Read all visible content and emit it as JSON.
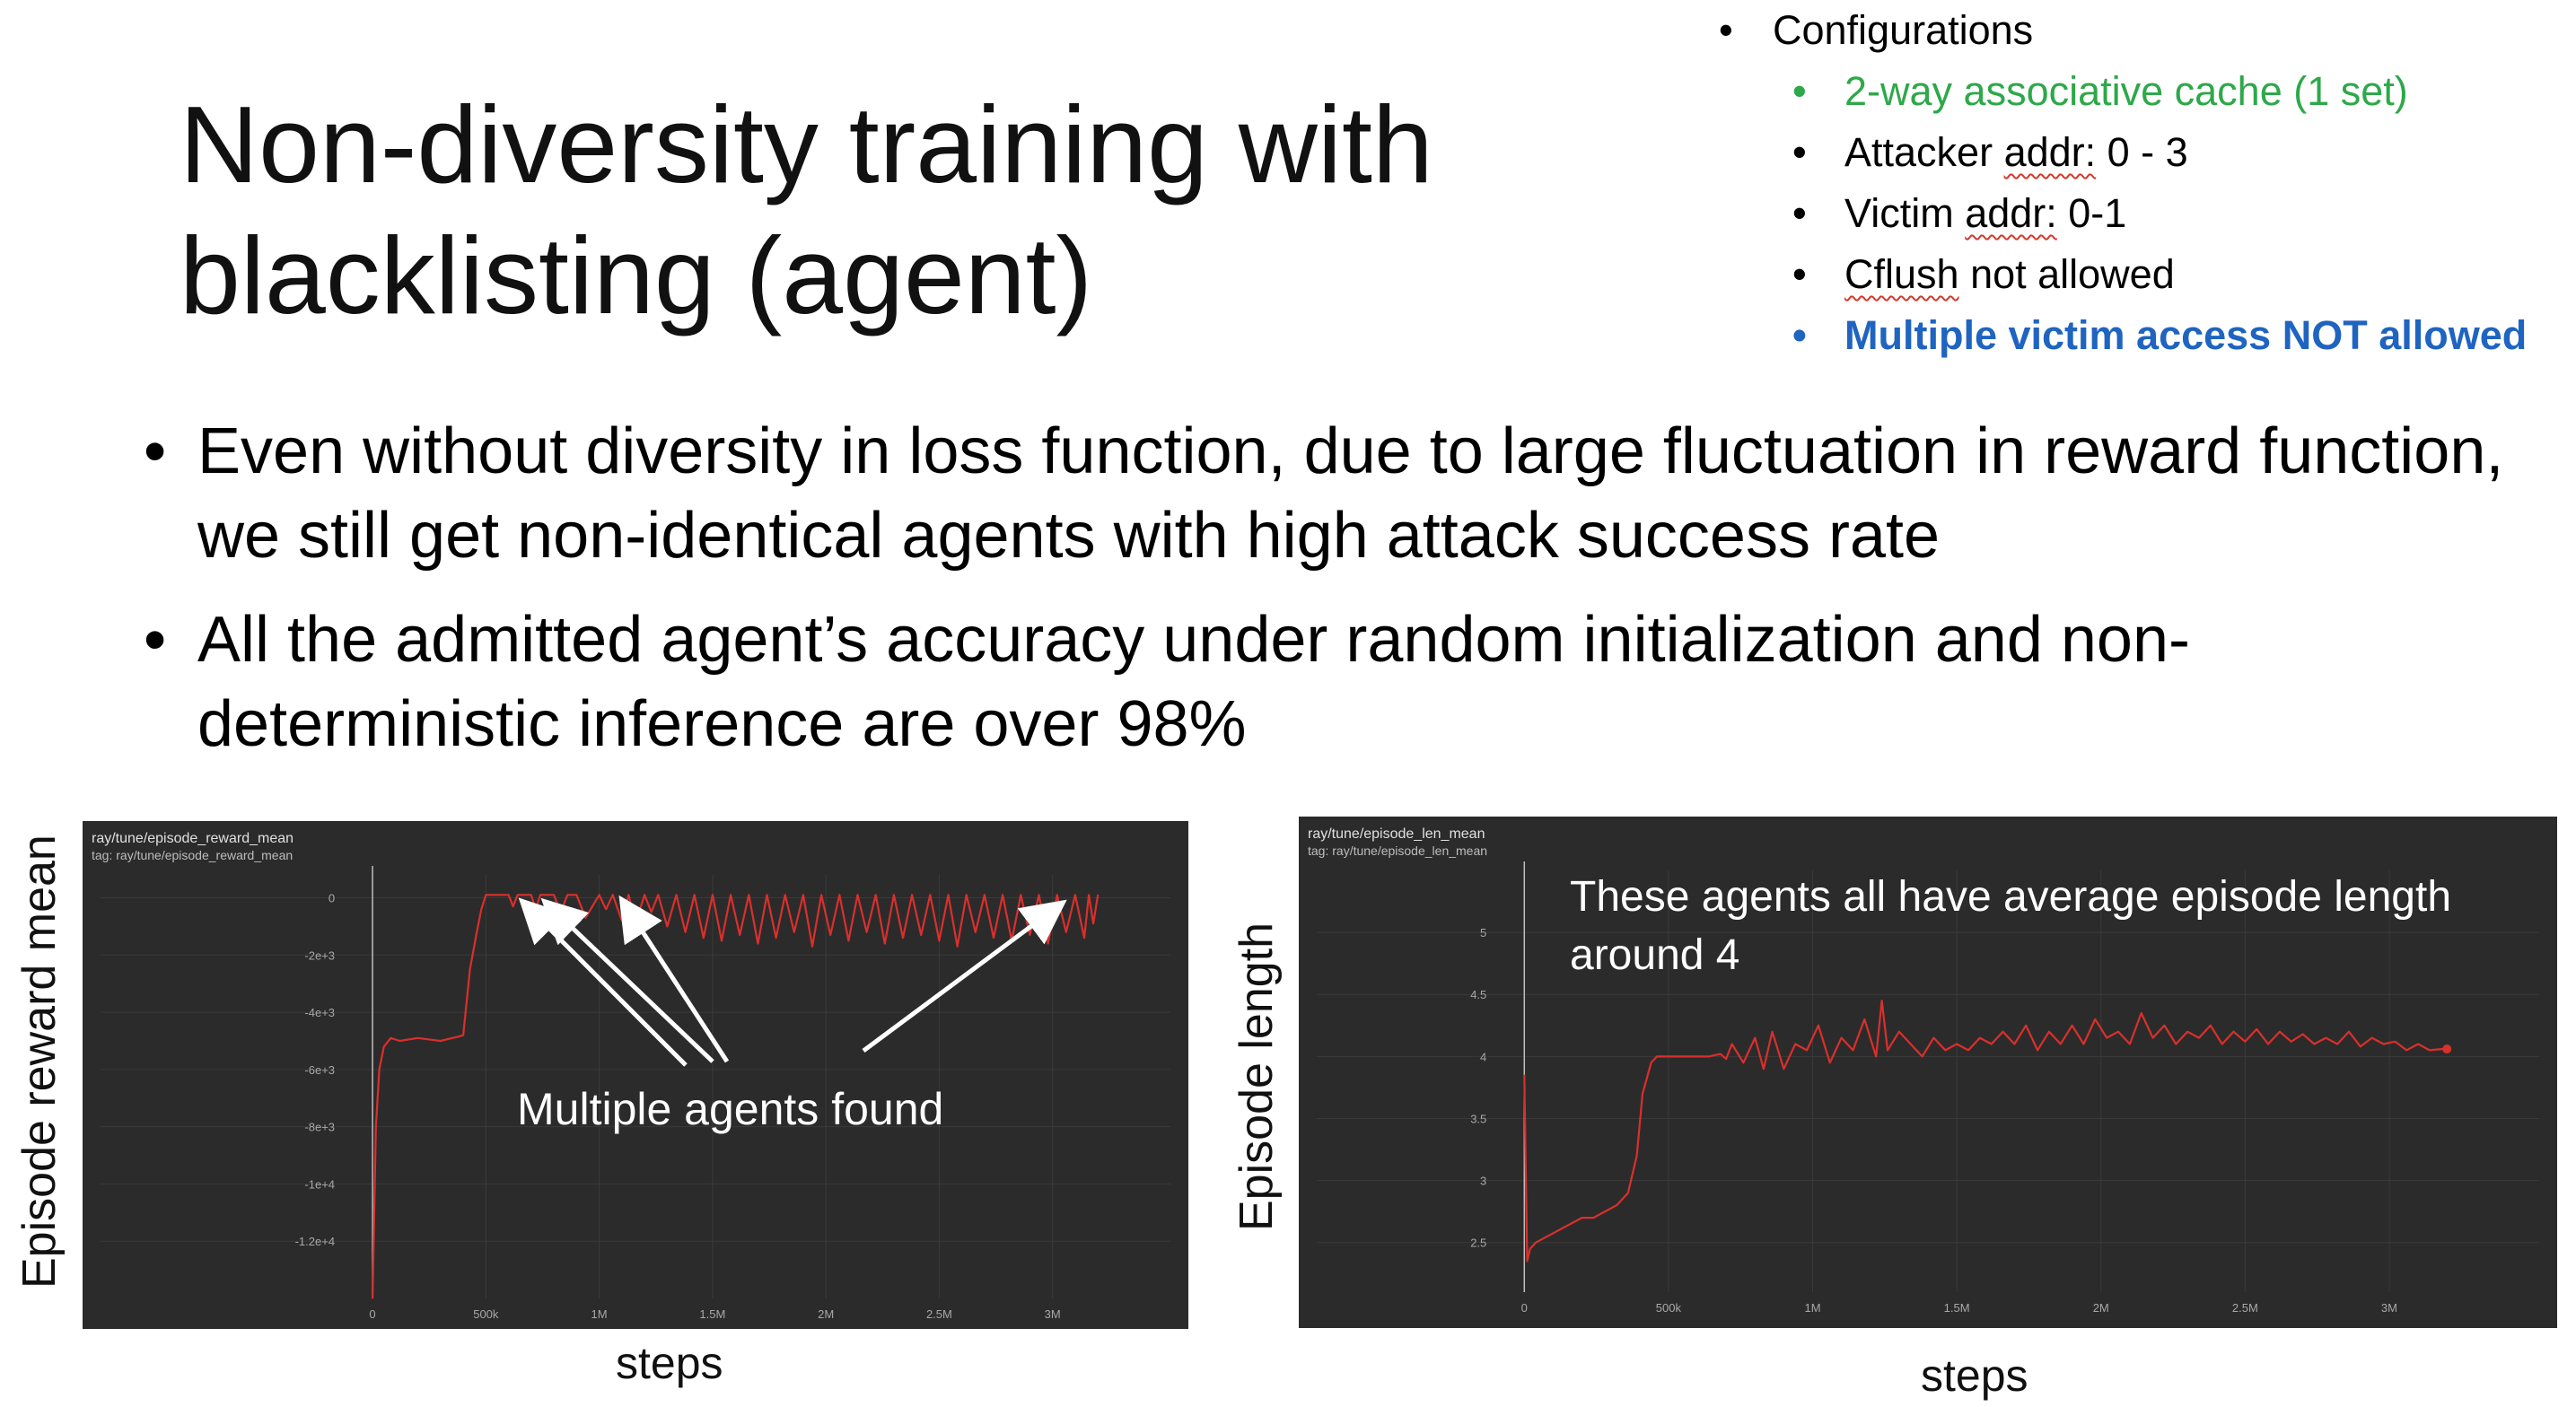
{
  "title": "Non-diversity training with blacklisting (agent)",
  "config": {
    "heading": "Configurations",
    "items": [
      {
        "text": "2-way associative cache (1 set)",
        "color": "#2ea84a"
      },
      {
        "pre": "Attacker ",
        "squiggle": "addr:",
        "post": " 0 - 3"
      },
      {
        "pre": "Victim ",
        "squiggle": "addr:",
        "post": " 0-1"
      },
      {
        "squiggle": "Cflush",
        "post": " not allowed"
      },
      {
        "text": "Multiple victim access NOT allowed",
        "color": "#1f64c0"
      }
    ]
  },
  "bullets": [
    "Even without diversity in loss function, due to large fluctuation in reward function, we still get non-identical agents with high attack success rate",
    "All the admitted agent’s accuracy under random initialization and non-deterministic inference are over 98%"
  ],
  "chart_data": [
    {
      "type": "line",
      "panel_title": "ray/tune/episode_reward_mean",
      "panel_tag": "tag: ray/tune/episode_reward_mean",
      "ylabel": "Episode reward mean",
      "xlabel": "steps",
      "xlim": [
        -1200000,
        3520000
      ],
      "ylim": [
        -14000,
        800
      ],
      "xticks": [
        {
          "v": 0,
          "l": "0"
        },
        {
          "v": 500000,
          "l": "500k"
        },
        {
          "v": 1000000,
          "l": "1M"
        },
        {
          "v": 1500000,
          "l": "1.5M"
        },
        {
          "v": 2000000,
          "l": "2M"
        },
        {
          "v": 2500000,
          "l": "2.5M"
        },
        {
          "v": 3000000,
          "l": "3M"
        }
      ],
      "yticks": [
        {
          "v": 0,
          "l": "0"
        },
        {
          "v": -2000,
          "l": "-2e+3"
        },
        {
          "v": -4000,
          "l": "-4e+3"
        },
        {
          "v": -6000,
          "l": "-6e+3"
        },
        {
          "v": -8000,
          "l": "-8e+3"
        },
        {
          "v": -10000,
          "l": "-1e+4"
        },
        {
          "v": -12000,
          "l": "-1.2e+4"
        }
      ],
      "series": [
        {
          "color": "#d9302c",
          "x": [
            0,
            15000,
            30000,
            50000,
            80000,
            120000,
            200000,
            300000,
            380000,
            400000,
            430000,
            460000,
            480000,
            500000,
            560000,
            600000,
            620000,
            640000,
            700000,
            720000,
            740000,
            800000,
            830000,
            860000,
            900000,
            940000,
            1000000,
            1030000,
            1060000,
            1100000,
            1130000,
            1160000,
            1200000,
            1230000,
            1260000,
            1300000,
            1340000,
            1380000,
            1420000,
            1460000,
            1500000,
            1540000,
            1580000,
            1620000,
            1660000,
            1700000,
            1740000,
            1780000,
            1820000,
            1860000,
            1900000,
            1940000,
            1980000,
            2020000,
            2060000,
            2100000,
            2140000,
            2180000,
            2220000,
            2260000,
            2300000,
            2340000,
            2380000,
            2420000,
            2460000,
            2500000,
            2540000,
            2580000,
            2620000,
            2660000,
            2700000,
            2740000,
            2780000,
            2820000,
            2860000,
            2900000,
            2940000,
            2980000,
            3020000,
            3060000,
            3100000,
            3140000,
            3160000,
            3180000,
            3200000
          ],
          "y": [
            -14000,
            -8000,
            -6000,
            -5200,
            -4900,
            -5000,
            -4900,
            -5000,
            -4850,
            -4800,
            -2500,
            -1200,
            -400,
            100,
            100,
            100,
            -300,
            100,
            100,
            -400,
            100,
            100,
            -500,
            100,
            100,
            -700,
            100,
            -400,
            100,
            -800,
            100,
            -900,
            100,
            -500,
            100,
            -1000,
            100,
            -1200,
            100,
            -1400,
            100,
            -1500,
            100,
            -1300,
            100,
            -1600,
            100,
            -1400,
            100,
            -1200,
            100,
            -1700,
            100,
            -1300,
            100,
            -1500,
            100,
            -1200,
            100,
            -1600,
            100,
            -1400,
            100,
            -1300,
            100,
            -1500,
            100,
            -1700,
            100,
            -1200,
            100,
            -1400,
            100,
            -1500,
            100,
            -1300,
            100,
            -1600,
            100,
            -1200,
            100,
            -1400,
            100,
            -900,
            100
          ]
        }
      ]
    },
    {
      "type": "line",
      "panel_title": "ray/tune/episode_len_mean",
      "panel_tag": "tag: ray/tune/episode_len_mean",
      "ylabel": "Episode length",
      "xlabel": "steps",
      "xlim": [
        -720000,
        3520000
      ],
      "ylim": [
        2.1,
        5.5
      ],
      "xticks": [
        {
          "v": 0,
          "l": "0"
        },
        {
          "v": 500000,
          "l": "500k"
        },
        {
          "v": 1000000,
          "l": "1M"
        },
        {
          "v": 1500000,
          "l": "1.5M"
        },
        {
          "v": 2000000,
          "l": "2M"
        },
        {
          "v": 2500000,
          "l": "2.5M"
        },
        {
          "v": 3000000,
          "l": "3M"
        }
      ],
      "yticks": [
        {
          "v": 2.5,
          "l": "2.5"
        },
        {
          "v": 3,
          "l": "3"
        },
        {
          "v": 3.5,
          "l": "3.5"
        },
        {
          "v": 4,
          "l": "4"
        },
        {
          "v": 4.5,
          "l": "4.5"
        },
        {
          "v": 5,
          "l": "5"
        }
      ],
      "series": [
        {
          "color": "#d9302c",
          "marker_end": true,
          "x": [
            0,
            10000,
            20000,
            40000,
            80000,
            120000,
            160000,
            200000,
            240000,
            280000,
            320000,
            360000,
            390000,
            410000,
            440000,
            460000,
            480000,
            520000,
            560000,
            600000,
            640000,
            680000,
            700000,
            720000,
            760000,
            800000,
            830000,
            860000,
            900000,
            940000,
            980000,
            1020000,
            1060000,
            1100000,
            1140000,
            1180000,
            1220000,
            1240000,
            1260000,
            1300000,
            1340000,
            1380000,
            1420000,
            1460000,
            1500000,
            1540000,
            1580000,
            1620000,
            1660000,
            1700000,
            1740000,
            1780000,
            1820000,
            1860000,
            1900000,
            1940000,
            1980000,
            2020000,
            2060000,
            2100000,
            2140000,
            2180000,
            2220000,
            2260000,
            2300000,
            2340000,
            2380000,
            2420000,
            2460000,
            2500000,
            2540000,
            2580000,
            2620000,
            2660000,
            2700000,
            2740000,
            2780000,
            2820000,
            2860000,
            2900000,
            2940000,
            2980000,
            3020000,
            3060000,
            3100000,
            3140000,
            3180000,
            3200000
          ],
          "y": [
            3.85,
            2.35,
            2.45,
            2.5,
            2.55,
            2.6,
            2.65,
            2.7,
            2.7,
            2.75,
            2.8,
            2.9,
            3.2,
            3.7,
            3.95,
            4.0,
            4.0,
            4.0,
            4.0,
            4.0,
            4.0,
            4.02,
            3.98,
            4.1,
            3.95,
            4.15,
            3.9,
            4.2,
            3.9,
            4.1,
            4.05,
            4.25,
            3.95,
            4.15,
            4.05,
            4.3,
            4.0,
            4.45,
            4.05,
            4.2,
            4.1,
            4.0,
            4.15,
            4.05,
            4.1,
            4.05,
            4.15,
            4.1,
            4.2,
            4.1,
            4.25,
            4.05,
            4.2,
            4.1,
            4.25,
            4.1,
            4.3,
            4.15,
            4.2,
            4.1,
            4.35,
            4.15,
            4.25,
            4.1,
            4.2,
            4.15,
            4.25,
            4.1,
            4.2,
            4.12,
            4.22,
            4.1,
            4.2,
            4.12,
            4.18,
            4.1,
            4.15,
            4.1,
            4.2,
            4.08,
            4.15,
            4.1,
            4.12,
            4.05,
            4.1,
            4.05,
            4.06,
            4.06
          ]
        }
      ]
    }
  ],
  "annotations": {
    "left": "Multiple agents found",
    "right_line1": "These agents all have average episode length",
    "right_line2": "around 4"
  },
  "arrows": {
    "targets": [
      700000,
      800000,
      1130000,
      3000000
    ]
  }
}
